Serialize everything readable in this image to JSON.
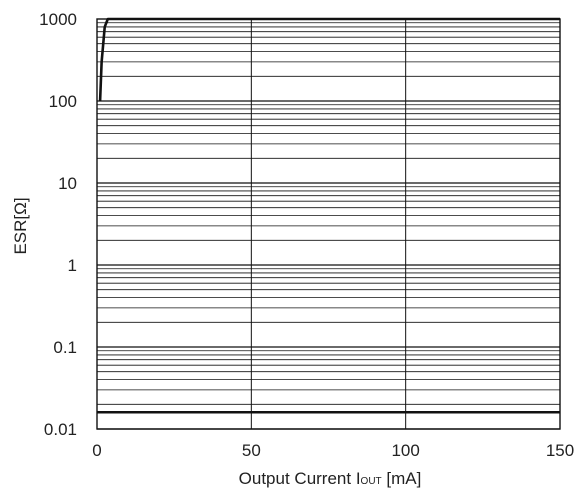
{
  "chart_data": {
    "type": "line",
    "xlabel": "Output Current I",
    "xlabel_sub": "OUT",
    "xlabel_unit": " [mA]",
    "ylabel": "ESR[Ω]",
    "xlim": [
      0,
      150
    ],
    "ylim": [
      0.01,
      1000
    ],
    "y_scale": "log",
    "grid": true,
    "x_ticks": [
      0,
      50,
      100,
      150
    ],
    "x_tick_labels": [
      "0",
      "50",
      "100",
      "150"
    ],
    "y_ticks": [
      0.01,
      0.1,
      1,
      10,
      100,
      1000
    ],
    "y_tick_labels": [
      "0.01",
      "0.1",
      "1",
      "10",
      "100",
      "1000"
    ],
    "series": [
      {
        "points": [
          [
            1,
            100
          ],
          [
            1.5,
            300
          ],
          [
            2.5,
            800
          ],
          [
            3.5,
            1000
          ],
          [
            150,
            1000
          ]
        ]
      },
      {
        "points": [
          [
            0,
            0.016
          ],
          [
            150,
            0.016
          ]
        ]
      }
    ],
    "color": "#111111"
  }
}
